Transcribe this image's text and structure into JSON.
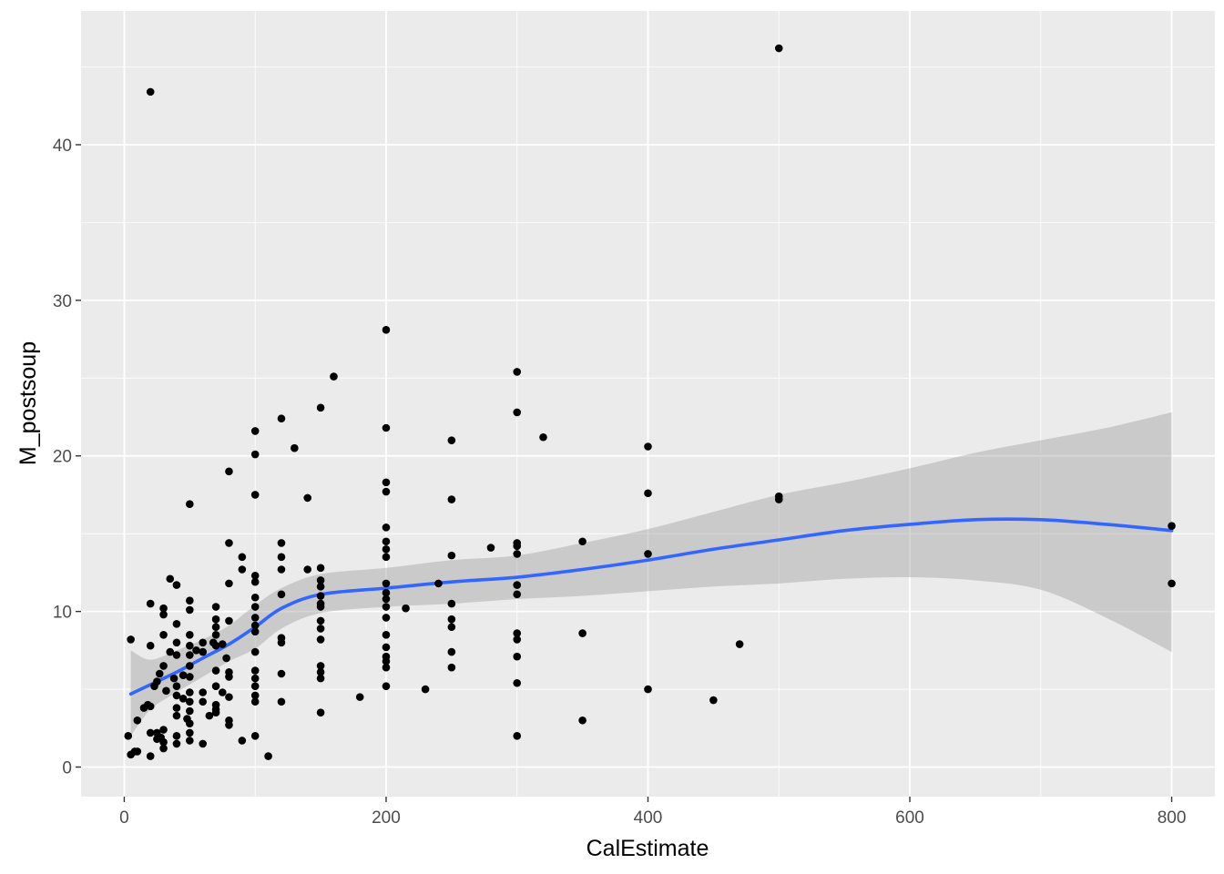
{
  "chart_data": {
    "type": "scatter",
    "title": "",
    "xlabel": "CalEstimate",
    "ylabel": "M_postsoup",
    "xlim": [
      -33,
      833
    ],
    "ylim": [
      -1.9,
      48.6
    ],
    "x_ticks": [
      0,
      200,
      400,
      600,
      800
    ],
    "y_ticks": [
      0,
      10,
      20,
      30,
      40
    ],
    "grid": true,
    "colors": {
      "panel": "#ebebeb",
      "grid": "#ffffff",
      "point": "#000000",
      "smooth_line": "#3366ff",
      "ribbon": "#999999"
    },
    "points": [
      [
        3,
        2.0
      ],
      [
        5,
        8.2
      ],
      [
        5,
        0.8
      ],
      [
        8,
        1.0
      ],
      [
        10,
        1.0
      ],
      [
        10,
        3.0
      ],
      [
        15,
        3.8
      ],
      [
        18,
        4.0
      ],
      [
        20,
        2.2
      ],
      [
        20,
        0.7
      ],
      [
        20,
        7.8
      ],
      [
        20,
        10.5
      ],
      [
        20,
        43.4
      ],
      [
        20,
        3.9
      ],
      [
        23,
        5.2
      ],
      [
        25,
        5.5
      ],
      [
        25,
        2.2
      ],
      [
        25,
        1.8
      ],
      [
        27,
        6.0
      ],
      [
        28,
        1.9
      ],
      [
        30,
        8.5
      ],
      [
        30,
        10.2
      ],
      [
        30,
        9.8
      ],
      [
        30,
        6.5
      ],
      [
        30,
        2.4
      ],
      [
        30,
        1.6
      ],
      [
        30,
        1.2
      ],
      [
        32,
        4.9
      ],
      [
        35,
        12.1
      ],
      [
        35,
        7.4
      ],
      [
        38,
        5.7
      ],
      [
        40,
        11.7
      ],
      [
        40,
        9.2
      ],
      [
        40,
        8.0
      ],
      [
        40,
        7.2
      ],
      [
        40,
        5.2
      ],
      [
        40,
        4.6
      ],
      [
        40,
        3.8
      ],
      [
        40,
        3.3
      ],
      [
        40,
        2.0
      ],
      [
        40,
        1.5
      ],
      [
        45,
        5.9
      ],
      [
        45,
        4.4
      ],
      [
        48,
        3.1
      ],
      [
        50,
        16.9
      ],
      [
        50,
        10.7
      ],
      [
        50,
        10.1
      ],
      [
        50,
        8.5
      ],
      [
        50,
        7.8
      ],
      [
        50,
        7.2
      ],
      [
        50,
        6.5
      ],
      [
        50,
        5.8
      ],
      [
        50,
        4.8
      ],
      [
        50,
        4.2
      ],
      [
        50,
        3.6
      ],
      [
        50,
        2.8
      ],
      [
        50,
        2.2
      ],
      [
        50,
        1.7
      ],
      [
        55,
        7.5
      ],
      [
        60,
        1.5
      ],
      [
        60,
        4.8
      ],
      [
        60,
        4.2
      ],
      [
        60,
        7.4
      ],
      [
        60,
        8.0
      ],
      [
        65,
        3.3
      ],
      [
        68,
        8.0
      ],
      [
        70,
        10.3
      ],
      [
        70,
        9.5
      ],
      [
        70,
        9.0
      ],
      [
        70,
        8.5
      ],
      [
        70,
        7.8
      ],
      [
        70,
        6.2
      ],
      [
        70,
        5.2
      ],
      [
        70,
        4.0
      ],
      [
        70,
        3.7
      ],
      [
        70,
        3.5
      ],
      [
        75,
        7.9
      ],
      [
        75,
        4.8
      ],
      [
        78,
        7.0
      ],
      [
        80,
        19.0
      ],
      [
        80,
        14.4
      ],
      [
        80,
        11.8
      ],
      [
        80,
        9.4
      ],
      [
        80,
        6.1
      ],
      [
        80,
        5.8
      ],
      [
        80,
        4.5
      ],
      [
        80,
        3.0
      ],
      [
        80,
        2.7
      ],
      [
        90,
        13.5
      ],
      [
        90,
        12.7
      ],
      [
        90,
        1.7
      ],
      [
        100,
        21.6
      ],
      [
        100,
        20.1
      ],
      [
        100,
        17.5
      ],
      [
        100,
        12.3
      ],
      [
        100,
        11.9
      ],
      [
        100,
        10.9
      ],
      [
        100,
        10.3
      ],
      [
        100,
        9.6
      ],
      [
        100,
        9.1
      ],
      [
        100,
        8.7
      ],
      [
        100,
        7.4
      ],
      [
        100,
        6.2
      ],
      [
        100,
        5.7
      ],
      [
        100,
        5.2
      ],
      [
        100,
        4.6
      ],
      [
        100,
        4.2
      ],
      [
        100,
        2.0
      ],
      [
        110,
        0.7
      ],
      [
        120,
        22.4
      ],
      [
        120,
        14.4
      ],
      [
        120,
        13.5
      ],
      [
        120,
        12.7
      ],
      [
        120,
        11.1
      ],
      [
        120,
        8.3
      ],
      [
        120,
        8.0
      ],
      [
        120,
        6.0
      ],
      [
        120,
        4.2
      ],
      [
        130,
        20.5
      ],
      [
        140,
        17.3
      ],
      [
        140,
        12.7
      ],
      [
        150,
        23.1
      ],
      [
        150,
        12.8
      ],
      [
        150,
        12.0
      ],
      [
        150,
        11.6
      ],
      [
        150,
        11.0
      ],
      [
        150,
        10.5
      ],
      [
        150,
        10.3
      ],
      [
        150,
        9.4
      ],
      [
        150,
        8.9
      ],
      [
        150,
        8.2
      ],
      [
        150,
        6.5
      ],
      [
        150,
        6.1
      ],
      [
        150,
        5.7
      ],
      [
        150,
        3.5
      ],
      [
        160,
        25.1
      ],
      [
        180,
        4.5
      ],
      [
        200,
        28.1
      ],
      [
        200,
        21.8
      ],
      [
        200,
        18.3
      ],
      [
        200,
        17.7
      ],
      [
        200,
        15.4
      ],
      [
        200,
        14.5
      ],
      [
        200,
        14.0
      ],
      [
        200,
        13.5
      ],
      [
        200,
        11.8
      ],
      [
        200,
        11.2
      ],
      [
        200,
        10.8
      ],
      [
        200,
        10.3
      ],
      [
        200,
        9.6
      ],
      [
        200,
        8.5
      ],
      [
        200,
        7.7
      ],
      [
        200,
        7.1
      ],
      [
        200,
        6.8
      ],
      [
        200,
        6.4
      ],
      [
        200,
        5.2
      ],
      [
        215,
        10.2
      ],
      [
        230,
        5.0
      ],
      [
        240,
        11.8
      ],
      [
        250,
        21.0
      ],
      [
        250,
        17.2
      ],
      [
        250,
        13.6
      ],
      [
        250,
        10.5
      ],
      [
        250,
        9.5
      ],
      [
        250,
        9.0
      ],
      [
        250,
        7.4
      ],
      [
        250,
        6.4
      ],
      [
        280,
        14.1
      ],
      [
        300,
        25.4
      ],
      [
        300,
        22.8
      ],
      [
        300,
        14.4
      ],
      [
        300,
        14.2
      ],
      [
        300,
        13.7
      ],
      [
        300,
        11.7
      ],
      [
        300,
        11.1
      ],
      [
        300,
        8.6
      ],
      [
        300,
        8.2
      ],
      [
        300,
        7.1
      ],
      [
        300,
        5.4
      ],
      [
        300,
        2.0
      ],
      [
        320,
        21.2
      ],
      [
        350,
        14.5
      ],
      [
        350,
        8.6
      ],
      [
        350,
        3.0
      ],
      [
        400,
        20.6
      ],
      [
        400,
        17.6
      ],
      [
        400,
        13.7
      ],
      [
        400,
        5.0
      ],
      [
        450,
        4.3
      ],
      [
        470,
        7.9
      ],
      [
        500,
        46.2
      ],
      [
        500,
        17.4
      ],
      [
        500,
        17.2
      ],
      [
        800,
        15.5
      ],
      [
        800,
        11.8
      ]
    ],
    "smooth": {
      "x": [
        5,
        20,
        40,
        60,
        80,
        100,
        120,
        150,
        200,
        250,
        300,
        350,
        400,
        450,
        500,
        550,
        600,
        650,
        700,
        750,
        800
      ],
      "y": [
        4.7,
        5.3,
        6.1,
        7.0,
        7.9,
        9.0,
        10.2,
        11.1,
        11.5,
        11.9,
        12.2,
        12.7,
        13.3,
        14.0,
        14.6,
        15.2,
        15.6,
        15.9,
        15.9,
        15.6,
        15.2
      ],
      "lower": [
        2.0,
        3.7,
        4.8,
        5.8,
        6.8,
        7.6,
        8.9,
        9.9,
        10.3,
        10.5,
        10.8,
        11.0,
        11.3,
        11.6,
        11.8,
        12.1,
        12.2,
        12.0,
        11.4,
        9.6,
        7.4
      ],
      "upper": [
        7.5,
        6.9,
        7.5,
        8.2,
        9.1,
        10.4,
        11.5,
        12.4,
        12.8,
        13.3,
        13.6,
        14.4,
        15.3,
        16.4,
        17.5,
        18.3,
        19.2,
        20.2,
        21.0,
        21.8,
        22.8
      ]
    }
  }
}
